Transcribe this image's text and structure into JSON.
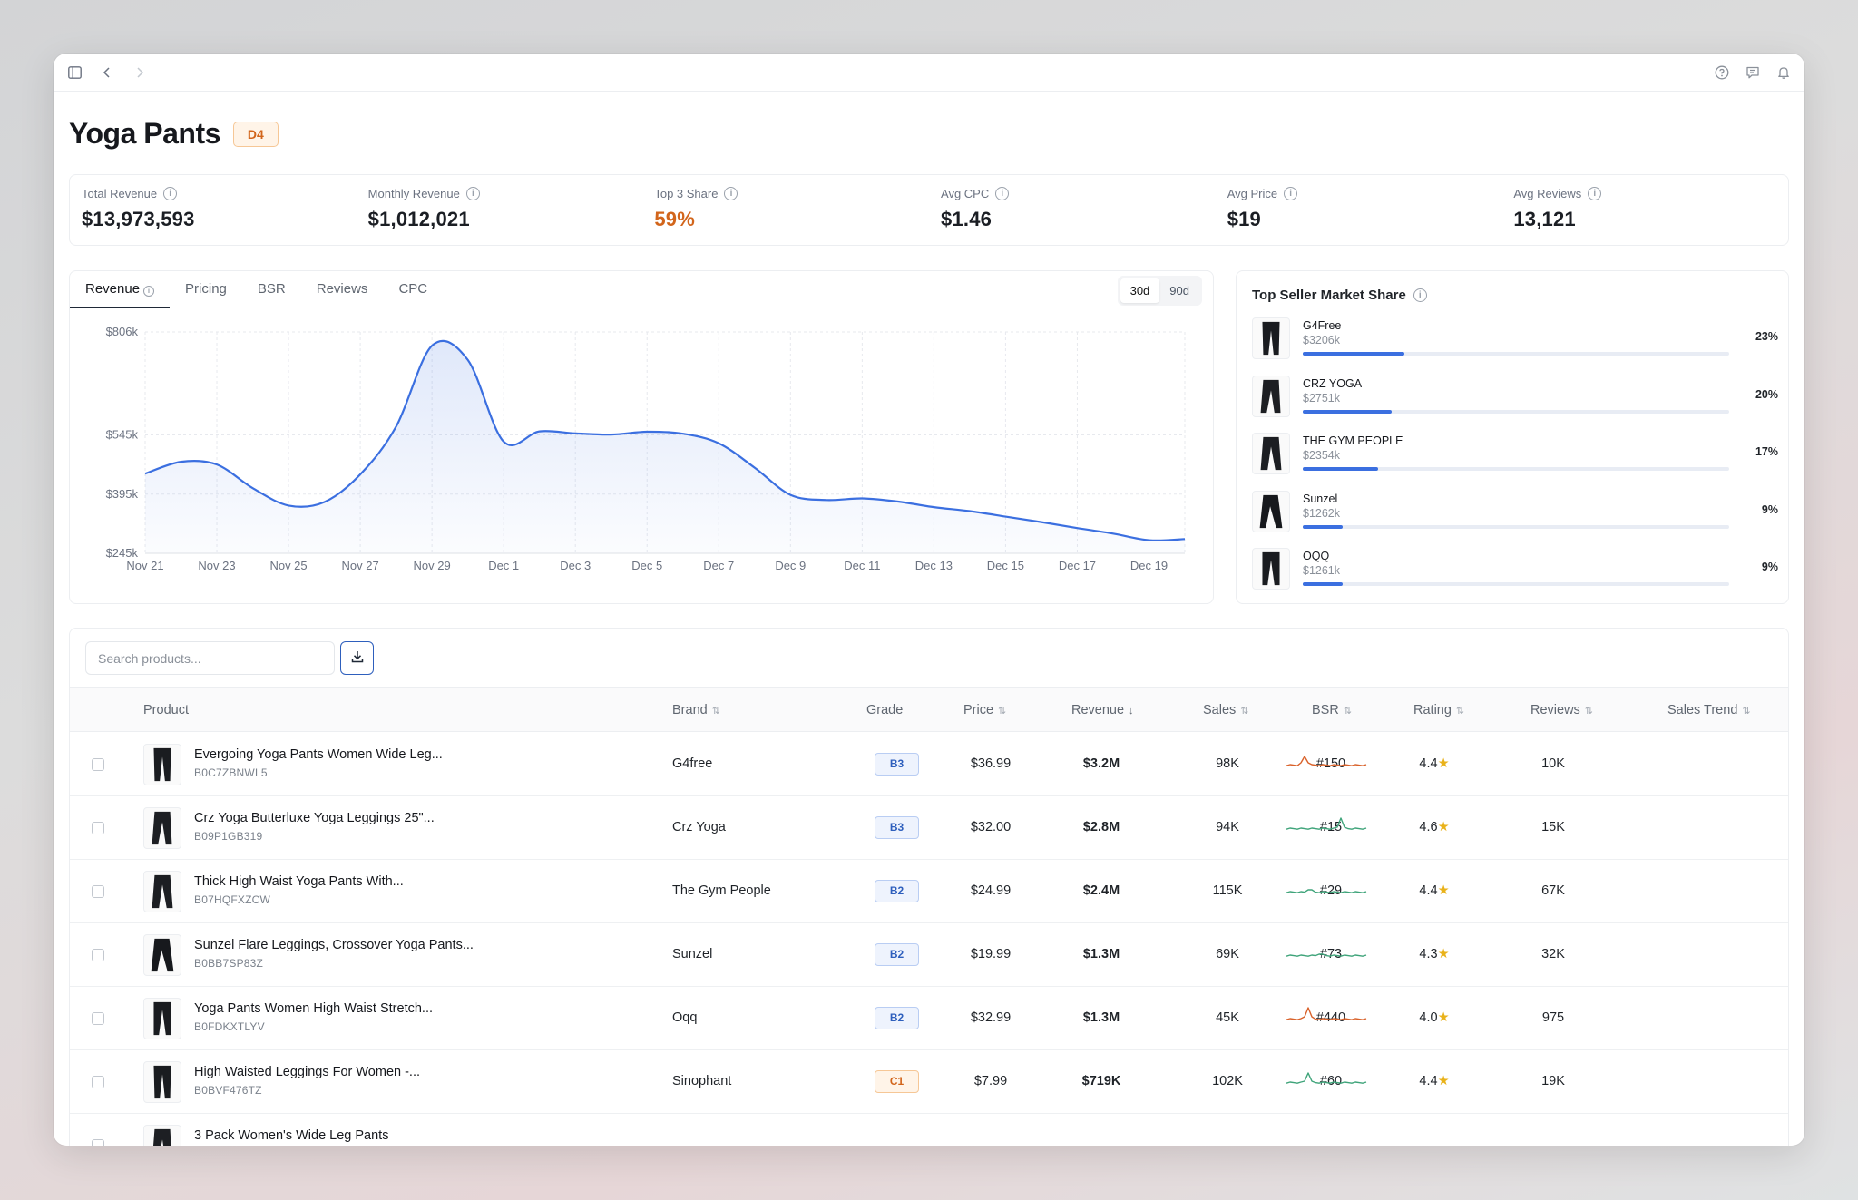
{
  "header": {
    "title": "Yoga Pants",
    "grade": "D4"
  },
  "metrics": [
    {
      "label": "Total Revenue",
      "value": "$13,973,593",
      "accent": false
    },
    {
      "label": "Monthly Revenue",
      "value": "$1,012,021",
      "accent": false
    },
    {
      "label": "Top 3 Share",
      "value": "59%",
      "accent": true
    },
    {
      "label": "Avg CPC",
      "value": "$1.46",
      "accent": false
    },
    {
      "label": "Avg Price",
      "value": "$19",
      "accent": false
    },
    {
      "label": "Avg Reviews",
      "value": "13,121",
      "accent": false
    }
  ],
  "chart_tabs": {
    "revenue": "Revenue",
    "pricing": "Pricing",
    "bsr": "BSR",
    "reviews": "Reviews",
    "cpc": "CPC",
    "range_30": "30d",
    "range_90": "90d"
  },
  "chart_data": {
    "type": "area",
    "x": [
      "Nov 21",
      "Nov 22",
      "Nov 23",
      "Nov 24",
      "Nov 25",
      "Nov 26",
      "Nov 27",
      "Nov 28",
      "Nov 29",
      "Nov 30",
      "Dec 1",
      "Dec 2",
      "Dec 3",
      "Dec 4",
      "Dec 5",
      "Dec 6",
      "Dec 7",
      "Dec 8",
      "Dec 9",
      "Dec 10",
      "Dec 11",
      "Dec 12",
      "Dec 13",
      "Dec 14",
      "Dec 15",
      "Dec 16",
      "Dec 17",
      "Dec 18",
      "Dec 19",
      "Dec 20"
    ],
    "tick_labels": [
      "Nov 21",
      "Nov 23",
      "Nov 25",
      "Nov 27",
      "Nov 29",
      "Dec 1",
      "Dec 3",
      "Dec 5",
      "Dec 7",
      "Dec 9",
      "Dec 11",
      "Dec 13",
      "Dec 15",
      "Dec 17",
      "Dec 19"
    ],
    "values": [
      447,
      477,
      470,
      410,
      366,
      375,
      445,
      566,
      771,
      735,
      528,
      554,
      549,
      546,
      553,
      548,
      524,
      462,
      393,
      380,
      384,
      376,
      362,
      352,
      338,
      324,
      309,
      295,
      278,
      281
    ],
    "yticks": [
      "$806k",
      "$545k",
      "$395k",
      "$245k"
    ],
    "ylim": [
      245,
      806
    ],
    "line_color": "#3b6fe0"
  },
  "market_share": {
    "title": "Top Seller Market Share",
    "sellers": [
      {
        "name": "G4Free",
        "revenue": "$3206k",
        "pct": "23%",
        "share": 23
      },
      {
        "name": "CRZ YOGA",
        "revenue": "$2751k",
        "pct": "20%",
        "share": 20
      },
      {
        "name": "THE GYM PEOPLE",
        "revenue": "$2354k",
        "pct": "17%",
        "share": 17
      },
      {
        "name": "Sunzel",
        "revenue": "$1262k",
        "pct": "9%",
        "share": 9
      },
      {
        "name": "OQQ",
        "revenue": "$1261k",
        "pct": "9%",
        "share": 9
      }
    ]
  },
  "table": {
    "search_placeholder": "Search products...",
    "columns": {
      "product": "Product",
      "brand": "Brand",
      "grade": "Grade",
      "price": "Price",
      "revenue": "Revenue",
      "sales": "Sales",
      "bsr": "BSR",
      "rating": "Rating",
      "reviews": "Reviews",
      "trend": "Sales Trend"
    },
    "rows": [
      {
        "name": "Evergoing Yoga Pants Women Wide Leg...",
        "asin": "B0C7ZBNWL5",
        "brand": "G4free",
        "grade": "B3",
        "grade_type": "b",
        "price": "$36.99",
        "revenue": "$3.2M",
        "sales": "98K",
        "bsr": "#150",
        "rating": "4.4",
        "reviews": "10K",
        "trend_color": "#d9622b"
      },
      {
        "name": "Crz Yoga Butterluxe Yoga Leggings 25\"...",
        "asin": "B09P1GB319",
        "brand": "Crz Yoga",
        "grade": "B3",
        "grade_type": "b",
        "price": "$32.00",
        "revenue": "$2.8M",
        "sales": "94K",
        "bsr": "#15",
        "rating": "4.6",
        "reviews": "15K",
        "trend_color": "#3fa47a"
      },
      {
        "name": "Thick High Waist Yoga Pants With...",
        "asin": "B07HQFXZCW",
        "brand": "The Gym People",
        "grade": "B2",
        "grade_type": "b",
        "price": "$24.99",
        "revenue": "$2.4M",
        "sales": "115K",
        "bsr": "#29",
        "rating": "4.4",
        "reviews": "67K",
        "trend_color": "#3fa47a"
      },
      {
        "name": "Sunzel Flare Leggings, Crossover Yoga Pants...",
        "asin": "B0BB7SP83Z",
        "brand": "Sunzel",
        "grade": "B2",
        "grade_type": "b",
        "price": "$19.99",
        "revenue": "$1.3M",
        "sales": "69K",
        "bsr": "#73",
        "rating": "4.3",
        "reviews": "32K",
        "trend_color": "#3fa47a"
      },
      {
        "name": "Yoga Pants Women High Waist Stretch...",
        "asin": "B0FDKXTLYV",
        "brand": "Oqq",
        "grade": "B2",
        "grade_type": "b",
        "price": "$32.99",
        "revenue": "$1.3M",
        "sales": "45K",
        "bsr": "#440",
        "rating": "4.0",
        "reviews": "975",
        "trend_color": "#d9622b"
      },
      {
        "name": "High Waisted Leggings For Women -...",
        "asin": "B0BVF476TZ",
        "brand": "Sinophant",
        "grade": "C1",
        "grade_type": "c",
        "price": "$7.99",
        "revenue": "$719K",
        "sales": "102K",
        "bsr": "#60",
        "rating": "4.4",
        "reviews": "19K",
        "trend_color": "#3fa47a"
      },
      {
        "name": "3 Pack Women's Wide Leg Pants",
        "asin": "",
        "brand": "",
        "grade": "",
        "grade_type": "c",
        "price": "",
        "revenue": "",
        "sales": "",
        "bsr": "",
        "rating": "",
        "reviews": "",
        "trend_color": "#3fa47a"
      }
    ]
  },
  "icons": {
    "sidebar": "sidebar-toggle-icon",
    "back": "chevron-left-icon",
    "forward": "chevron-right-icon",
    "help": "help-circle-icon",
    "feedback": "message-icon",
    "notifications": "bell-icon",
    "download": "download-icon",
    "star": "★",
    "sort": "⇅",
    "sort_desc": "↓"
  }
}
